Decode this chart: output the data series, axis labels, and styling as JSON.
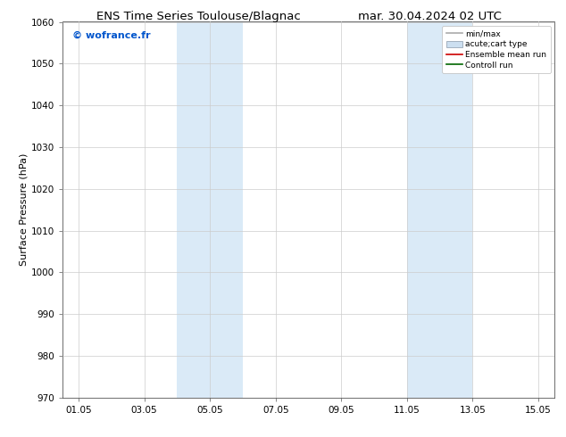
{
  "title_left": "ENS Time Series Toulouse/Blagnac",
  "title_right": "mar. 30.04.2024 02 UTC",
  "ylabel": "Surface Pressure (hPa)",
  "ylim": [
    970,
    1060
  ],
  "yticks": [
    970,
    980,
    990,
    1000,
    1010,
    1020,
    1030,
    1040,
    1050,
    1060
  ],
  "xlim_start": 0.5,
  "xlim_end": 15.5,
  "xtick_labels": [
    "01.05",
    "03.05",
    "05.05",
    "07.05",
    "09.05",
    "11.05",
    "13.05",
    "15.05"
  ],
  "xtick_positions": [
    1.0,
    3.0,
    5.0,
    7.0,
    9.0,
    11.0,
    13.0,
    15.0
  ],
  "shaded_bands": [
    {
      "x_start": 4.0,
      "x_end": 6.0
    },
    {
      "x_start": 11.0,
      "x_end": 13.0
    }
  ],
  "shaded_color": "#daeaf7",
  "watermark_text": "© wofrance.fr",
  "watermark_color": "#0055cc",
  "legend_entries": [
    {
      "label": "min/max",
      "color": "#aaaaaa",
      "type": "line"
    },
    {
      "label": "acute;cart type",
      "color": "#ccdff0",
      "type": "patch"
    },
    {
      "label": "Ensemble mean run",
      "color": "#cc0000",
      "type": "line"
    },
    {
      "label": "Controll run",
      "color": "#006600",
      "type": "line"
    }
  ],
  "grid_color": "#cccccc",
  "background_color": "#ffffff",
  "title_fontsize": 9.5,
  "ylabel_fontsize": 8,
  "tick_fontsize": 7.5,
  "watermark_fontsize": 8
}
